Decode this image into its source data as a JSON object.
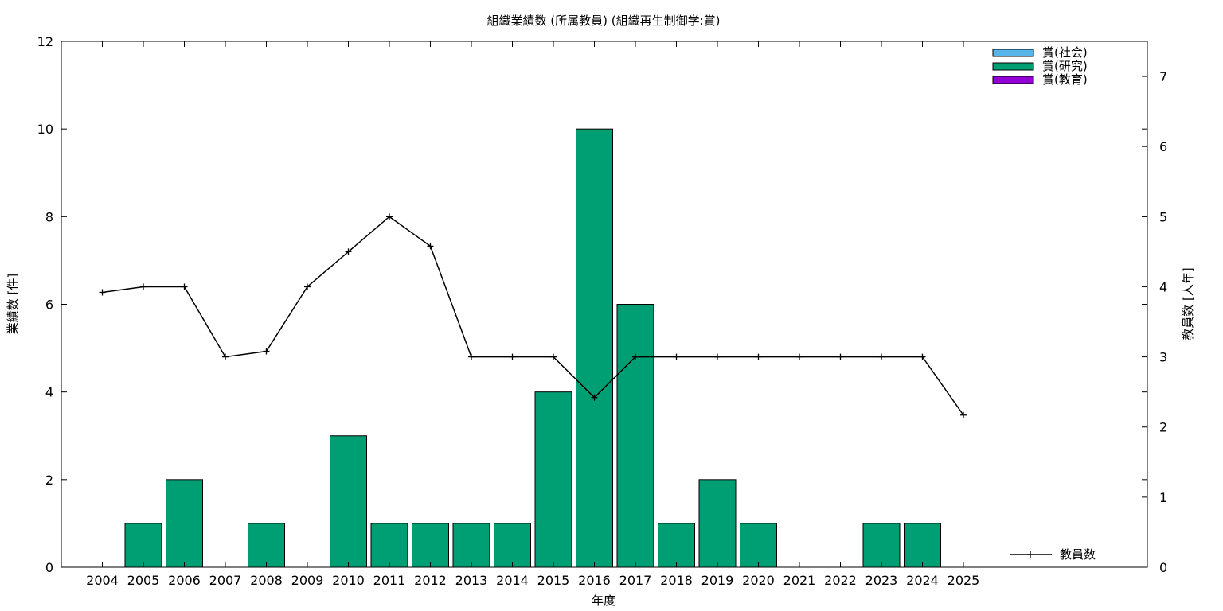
{
  "chart_data": {
    "type": "bar",
    "title": "組織業績数 (所属教員) (組織再生制御学:賞)",
    "xlabel": "年度",
    "ylabel": "業績数 [件]",
    "y2label": "教員数 [人年]",
    "ylim": [
      0,
      12
    ],
    "y2lim": [
      0,
      7.5
    ],
    "yticks": [
      0,
      2,
      4,
      6,
      8,
      10,
      12
    ],
    "y2ticks": [
      0,
      1,
      2,
      3,
      4,
      5,
      6,
      7
    ],
    "categories": [
      "2004",
      "2005",
      "2006",
      "2007",
      "2008",
      "2009",
      "2010",
      "2011",
      "2012",
      "2013",
      "2014",
      "2015",
      "2016",
      "2017",
      "2018",
      "2019",
      "2020",
      "2021",
      "2022",
      "2023",
      "2024",
      "2025"
    ],
    "series": [
      {
        "name": "賞(社会)",
        "color": "#56b4e9",
        "values": [
          0,
          0,
          0,
          0,
          0,
          0,
          0,
          0,
          0,
          0,
          0,
          0,
          0,
          0,
          0,
          0,
          0,
          0,
          0,
          0,
          0,
          0
        ]
      },
      {
        "name": "賞(研究)",
        "color": "#009e73",
        "values": [
          0,
          1,
          2,
          0,
          1,
          0,
          3,
          1,
          1,
          1,
          1,
          4,
          10,
          6,
          1,
          2,
          1,
          0,
          0,
          1,
          1,
          0
        ]
      },
      {
        "name": "賞(教育)",
        "color": "#9400d3",
        "values": [
          0,
          0,
          0,
          0,
          0,
          0,
          0,
          0,
          0,
          0,
          0,
          0,
          0,
          0,
          0,
          0,
          0,
          0,
          0,
          0,
          0,
          0
        ]
      }
    ],
    "line_series": {
      "name": "教員数",
      "color": "#000000",
      "axis": "y2",
      "values": [
        3.92,
        4.0,
        4.0,
        3.0,
        3.08,
        4.0,
        4.5,
        5.0,
        4.58,
        3.0,
        3.0,
        3.0,
        2.42,
        3.0,
        3.0,
        3.0,
        3.0,
        3.0,
        3.0,
        3.0,
        3.0,
        2.17
      ]
    },
    "legend_placement": "top-right",
    "grid": false
  }
}
